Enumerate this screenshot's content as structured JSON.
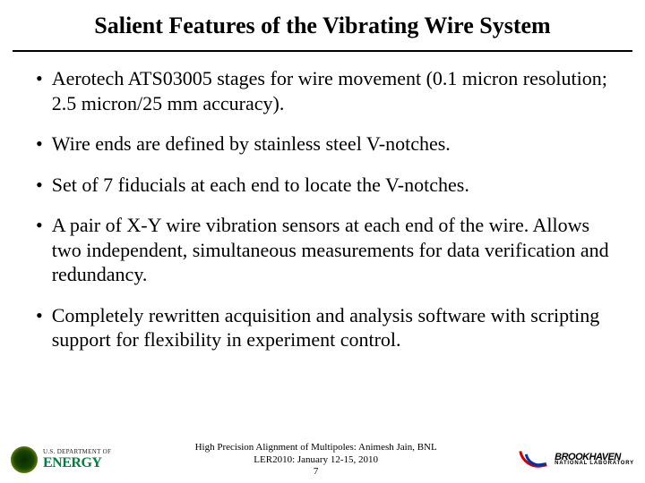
{
  "title": "Salient Features of the Vibrating Wire System",
  "bullets": [
    "Aerotech ATS03005 stages for wire movement (0.1 micron resolution; 2.5 micron/25 mm accuracy).",
    "Wire ends are defined by stainless steel V-notches.",
    "Set of 7 fiducials at each end to locate the V-notches.",
    "A pair of X-Y wire vibration sensors at each end of the wire. Allows two independent, simultaneous measurements for data verification and redundancy.",
    "Completely rewritten acquisition and analysis software with scripting support for flexibility in experiment control."
  ],
  "footer": {
    "line1": "High Precision Alignment of Multipoles: Animesh Jain, BNL",
    "line2": "LER2010: January 12-15, 2010",
    "line3": "7"
  },
  "logos": {
    "doe_line1": "U.S. DEPARTMENT OF",
    "doe_line2": "ENERGY",
    "bnl_line1": "BROOKHAVEN",
    "bnl_line2": "NATIONAL LABORATORY"
  },
  "style": {
    "title_fontsize": 26,
    "body_fontsize": 22,
    "footer_fontsize": 11,
    "text_color": "#000000",
    "background_color": "#ffffff",
    "doe_green": "#008040",
    "bnl_red": "#cc0000",
    "bnl_blue": "#0033aa"
  }
}
